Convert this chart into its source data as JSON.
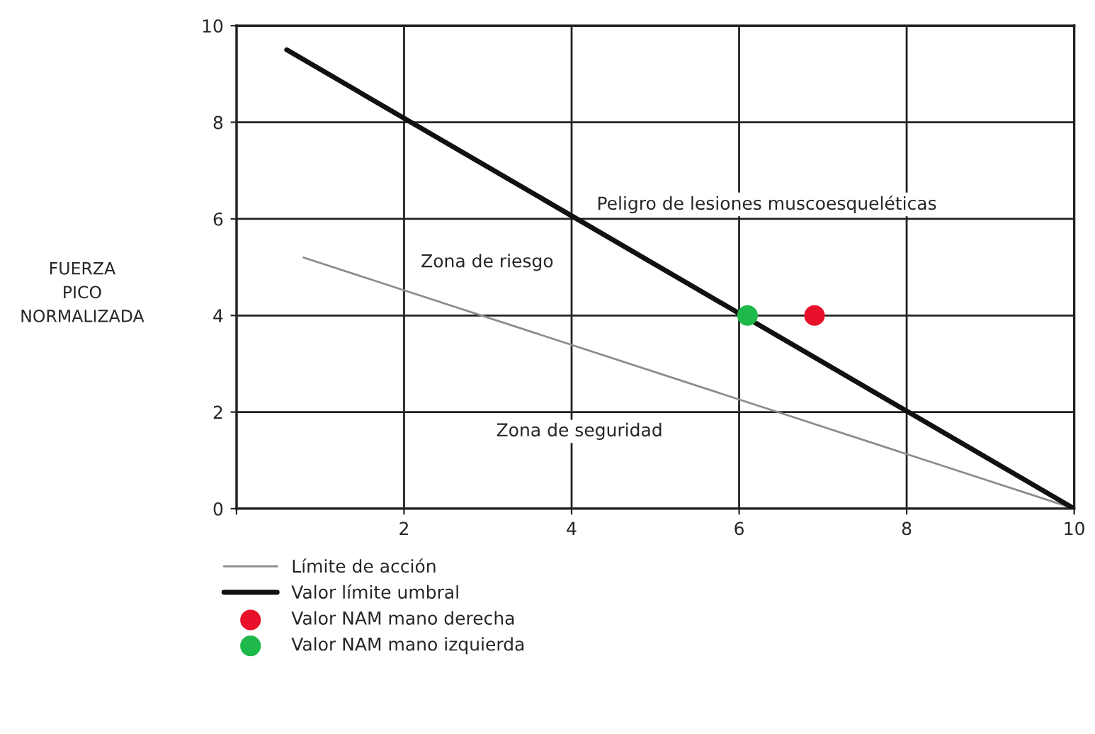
{
  "chart_data": {
    "type": "line",
    "ylabel": "FUERZA\nPICO\nNORMALIZADA",
    "xlim": [
      0,
      10
    ],
    "ylim": [
      0,
      10
    ],
    "xticks": [
      {
        "value": 0,
        "label": null
      },
      2,
      4,
      6,
      8,
      10
    ],
    "yticks": [
      0,
      2,
      4,
      6,
      8,
      10
    ],
    "grid": true,
    "legend": "bottom",
    "series": [
      {
        "name": "Límite de acción",
        "color": "#8c8c8c",
        "x": [
          0.8,
          10
        ],
        "values": [
          5.2,
          0
        ],
        "marker": "none"
      },
      {
        "name": "Valor límite umbral",
        "color": "#111111",
        "x": [
          0.6,
          10
        ],
        "values": [
          9.5,
          0
        ],
        "marker": "none"
      },
      {
        "name": "Valor NAM mano derecha",
        "type": "scatter",
        "color": "#e8102a",
        "x": [
          6.9
        ],
        "values": [
          4.0
        ],
        "marker": "circle"
      },
      {
        "name": "Valor NAM mano izquierda",
        "type": "scatter",
        "color": "#1fb84a",
        "x": [
          6.1
        ],
        "values": [
          4.0
        ],
        "marker": "circle"
      }
    ],
    "annotations": [
      "Peligro de lesiones muscoesqueléticas",
      "Zona de riesgo",
      "Zona de seguridad"
    ]
  }
}
